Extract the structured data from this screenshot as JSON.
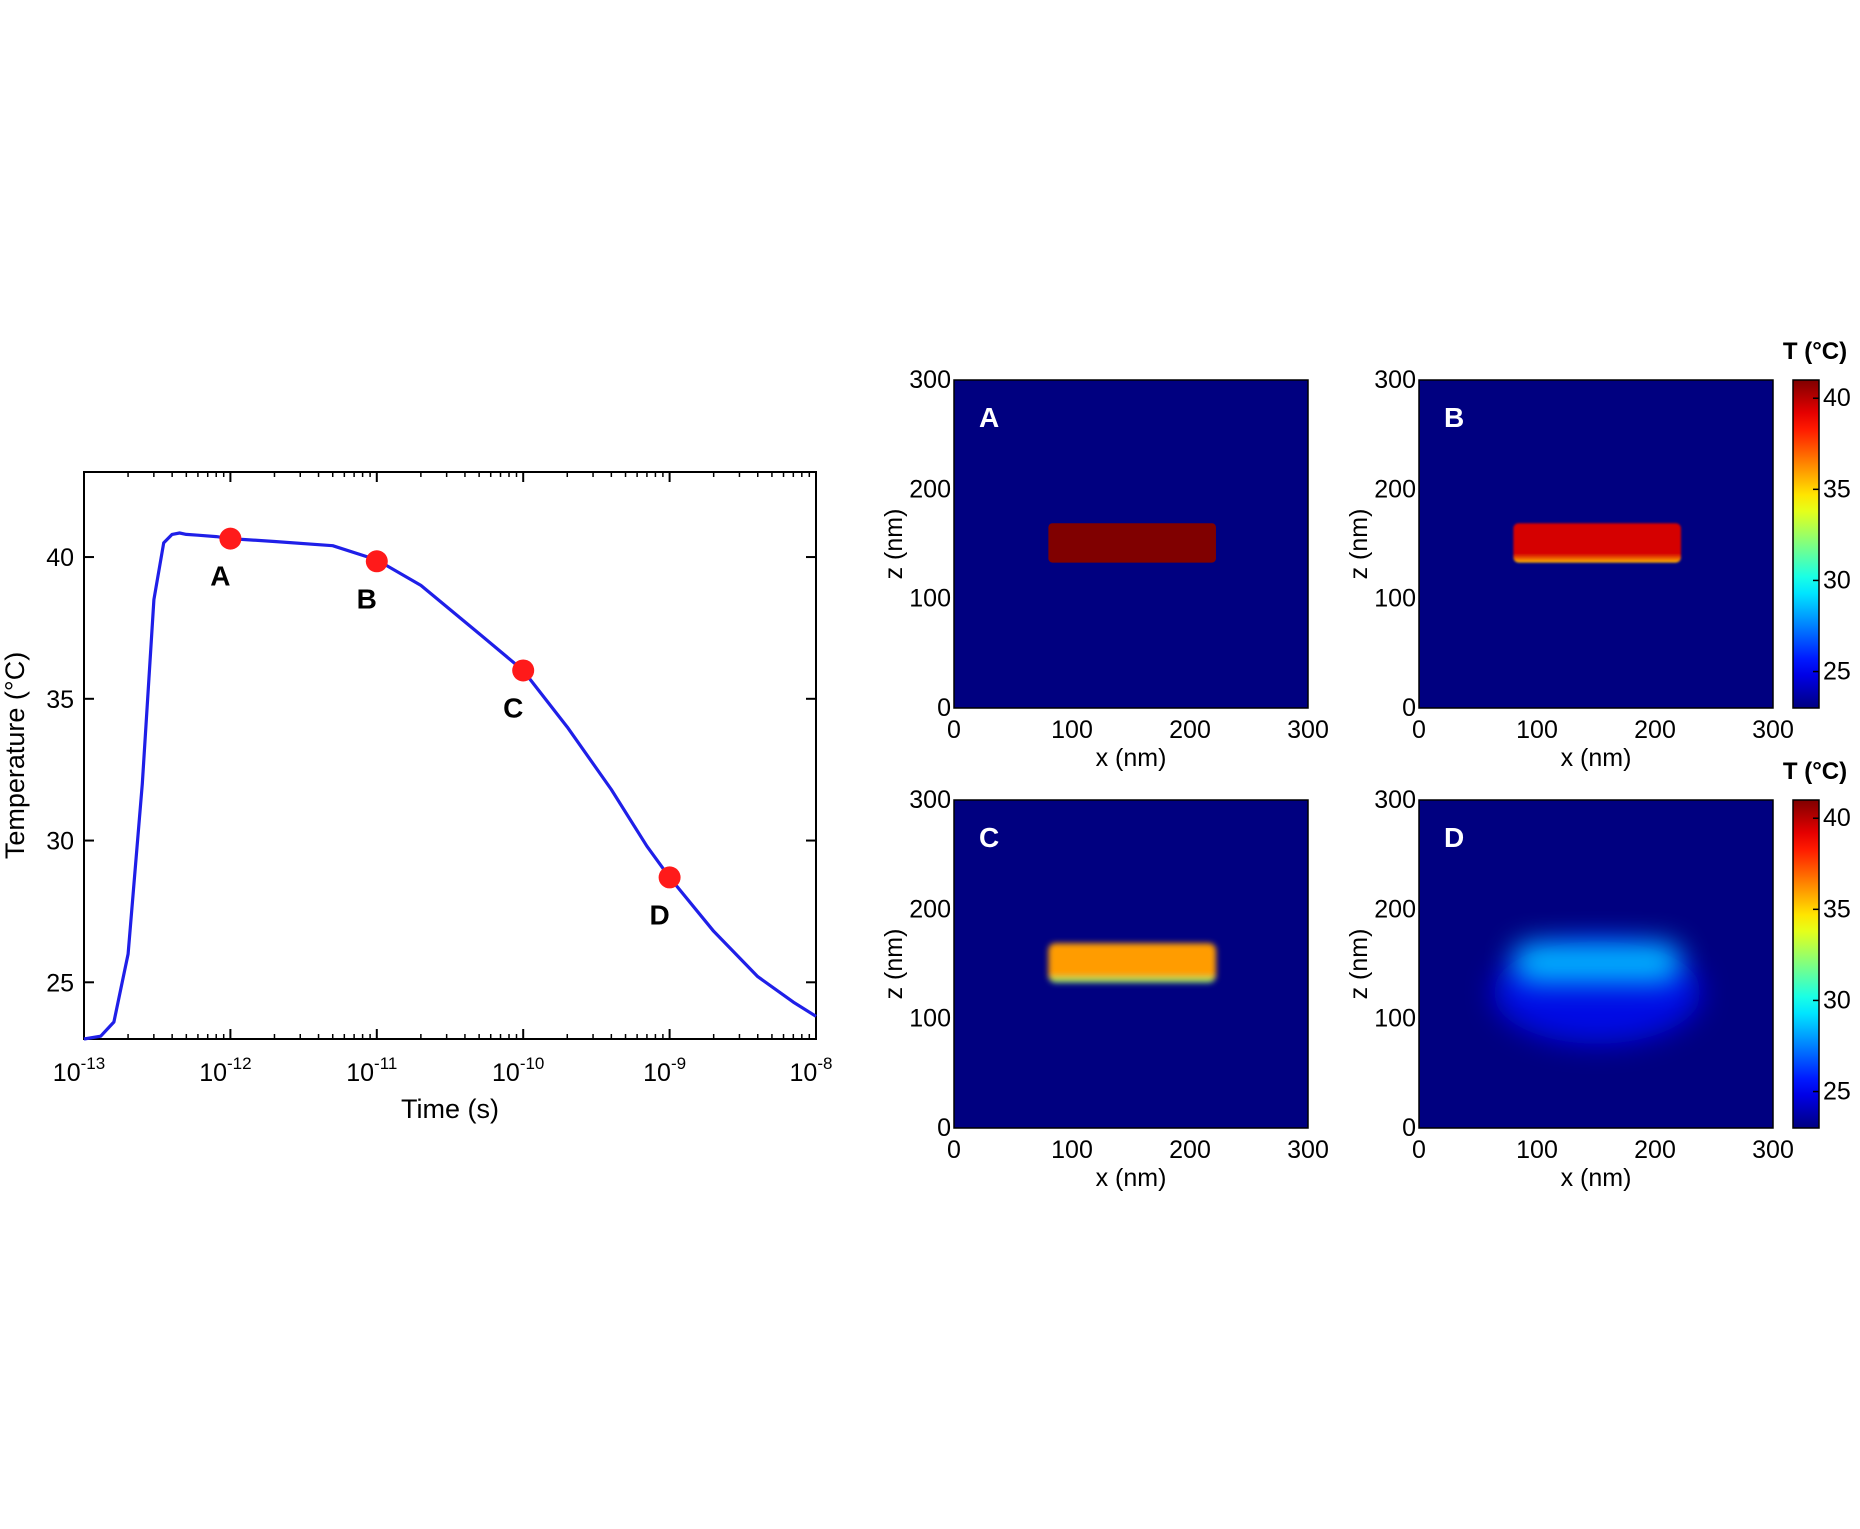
{
  "chart_data": [
    {
      "type": "line",
      "xlabel": "Time (s)",
      "ylabel": "Temperature (°C)",
      "x_scale": "log",
      "xlim": [
        1e-13,
        1e-08
      ],
      "ylim": [
        23,
        43
      ],
      "xticks": [
        {
          "value": 1e-13,
          "base": "10",
          "exp": "-13"
        },
        {
          "value": 1e-12,
          "base": "10",
          "exp": "-12"
        },
        {
          "value": 1e-11,
          "base": "10",
          "exp": "-11"
        },
        {
          "value": 1e-10,
          "base": "10",
          "exp": "-10"
        },
        {
          "value": 1e-09,
          "base": "10",
          "exp": "-9"
        },
        {
          "value": 1e-08,
          "base": "10",
          "exp": "-8"
        }
      ],
      "yticks": [
        25,
        30,
        35,
        40
      ],
      "grid": false,
      "series": [
        {
          "color": "#1f1fe8",
          "x": [
            1e-13,
            1.3e-13,
            1.6e-13,
            2e-13,
            2.5e-13,
            3e-13,
            3.5e-13,
            4e-13,
            4.5e-13,
            5e-13,
            6e-13,
            8e-13,
            1e-12,
            2e-12,
            5e-12,
            1e-11,
            2e-11,
            5e-11,
            1e-10,
            2e-10,
            4e-10,
            7e-10,
            1e-09,
            2e-09,
            4e-09,
            7e-09,
            1e-08
          ],
          "y": [
            23.0,
            23.1,
            23.6,
            26.0,
            32.0,
            38.5,
            40.5,
            40.8,
            40.85,
            40.8,
            40.77,
            40.72,
            40.65,
            40.55,
            40.4,
            39.9,
            39.0,
            37.3,
            36.0,
            34.0,
            31.8,
            29.8,
            28.7,
            26.8,
            25.2,
            24.3,
            23.8
          ]
        }
      ],
      "markers": [
        {
          "label": "A",
          "x": 1e-12,
          "y": 40.65,
          "color": "#ff1a1a"
        },
        {
          "label": "B",
          "x": 1e-11,
          "y": 39.85,
          "color": "#ff1a1a"
        },
        {
          "label": "C",
          "x": 1e-10,
          "y": 36.0,
          "color": "#ff1a1a"
        },
        {
          "label": "D",
          "x": 1e-09,
          "y": 28.7,
          "color": "#ff1a1a"
        }
      ]
    },
    {
      "type": "heatmap",
      "panels": [
        {
          "label": "A",
          "rod_temperature": 41.0,
          "bottom_edge_temperature": 41.0,
          "blur": 0
        },
        {
          "label": "B",
          "rod_temperature": 39.5,
          "bottom_edge_temperature": 35.5,
          "blur": 1
        },
        {
          "label": "C",
          "rod_temperature": 36.0,
          "bottom_edge_temperature": 32.0,
          "blur": 3
        },
        {
          "label": "D",
          "rod_temperature": 28.5,
          "bottom_edge_temperature": 28.5,
          "blur": 14
        }
      ],
      "background_temperature": 23,
      "xlabel": "x (nm)",
      "ylabel": "z (nm)",
      "xlim": [
        0,
        300
      ],
      "ylim": [
        0,
        300
      ],
      "xticks": [
        0,
        100,
        200,
        300
      ],
      "yticks": [
        0,
        100,
        200,
        300
      ],
      "rod_extent": {
        "x": [
          80,
          222
        ],
        "z": [
          133,
          169
        ]
      },
      "colorbar": {
        "title": "T (°C)",
        "ticks": [
          25,
          30,
          35,
          40
        ],
        "range": [
          23,
          41
        ],
        "colormap": "jet"
      }
    }
  ]
}
